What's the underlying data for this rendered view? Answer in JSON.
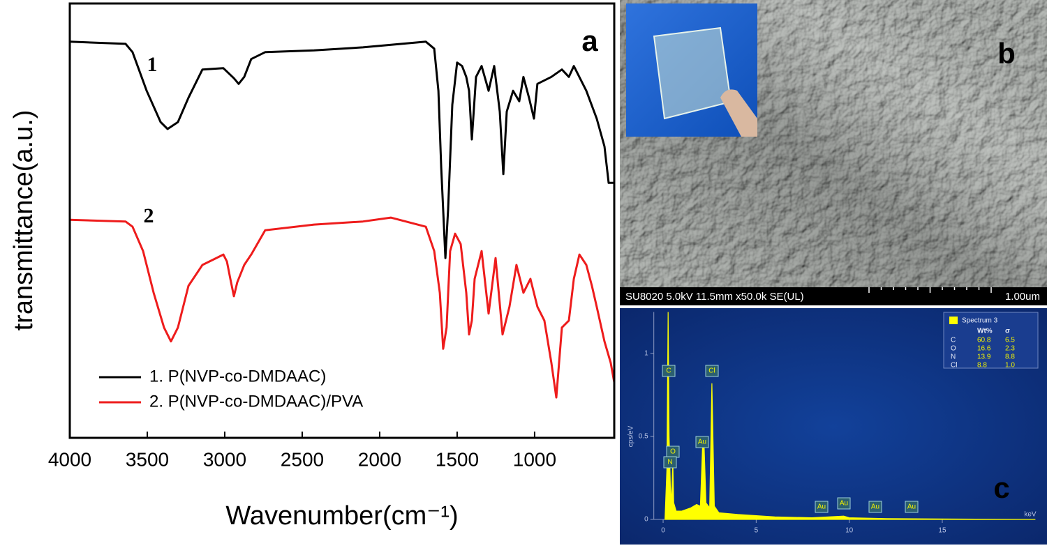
{
  "chart_data": [
    {
      "type": "line",
      "ylabel": "transmittance(a.u.)",
      "xlabel": "Wavenumber(cm⁻¹)",
      "xlim": [
        4000,
        486
      ],
      "ylim": [
        0,
        100
      ],
      "xticks": [
        4000,
        3500,
        3000,
        2500,
        2000,
        1500,
        1000
      ],
      "curve_labels": [
        "1",
        "2"
      ],
      "panel_label": "a",
      "series": [
        {
          "name": "1. P(NVP-co-DMDAAC)",
          "color": "#000000",
          "x": [
            4000,
            3640,
            3595,
            3504,
            3414,
            3369,
            3302,
            3234,
            3144,
            3009,
            2941,
            2910,
            2874,
            2829,
            2739,
            2423,
            2108,
            1702,
            1648,
            1621,
            1603,
            1576,
            1558,
            1531,
            1500,
            1468,
            1441,
            1423,
            1405,
            1378,
            1342,
            1297,
            1261,
            1225,
            1202,
            1180,
            1139,
            1099,
            1072,
            1036,
            1004,
            982,
            892,
            824,
            779,
            747,
            702,
            666,
            599,
            549,
            522,
            486
          ],
          "values": [
            91.2,
            90.7,
            88.8,
            79.9,
            72.7,
            71.1,
            72.7,
            78.3,
            84.8,
            85.1,
            82.8,
            81.5,
            83.1,
            87.2,
            88.8,
            89.2,
            89.9,
            91.2,
            89.6,
            79.9,
            62.3,
            41.4,
            52.6,
            76.7,
            86.4,
            85.6,
            83.1,
            79.9,
            68.7,
            83.1,
            85.6,
            79.9,
            85.6,
            75.1,
            60.7,
            75.1,
            79.9,
            77.5,
            83.1,
            78.3,
            73.5,
            81.5,
            83.1,
            84.8,
            83.1,
            85.6,
            82.4,
            79.9,
            73.5,
            67.1,
            58.7,
            58.7
          ]
        },
        {
          "name": "2. P(NVP-co-DMDAAC)/PVA",
          "color": "#ee1c1c",
          "x": [
            4000,
            3640,
            3595,
            3527,
            3459,
            3392,
            3347,
            3302,
            3234,
            3144,
            3054,
            3009,
            2986,
            2964,
            2941,
            2919,
            2874,
            2829,
            2739,
            2423,
            2108,
            1928,
            1702,
            1648,
            1612,
            1590,
            1568,
            1545,
            1513,
            1477,
            1441,
            1423,
            1405,
            1387,
            1342,
            1297,
            1252,
            1207,
            1162,
            1117,
            1072,
            1027,
            982,
            937,
            892,
            860,
            824,
            779,
            747,
            711,
            666,
            630,
            599,
            549,
            509,
            486
          ],
          "values": [
            50.2,
            49.8,
            48.6,
            43.0,
            33.4,
            25.4,
            22.2,
            25.4,
            35.0,
            39.8,
            41.4,
            42.2,
            40.6,
            36.6,
            32.6,
            35.8,
            39.8,
            42.2,
            47.8,
            49.1,
            49.8,
            50.7,
            48.6,
            43.0,
            33.4,
            20.5,
            25.4,
            43.0,
            47.0,
            44.6,
            33.4,
            23.8,
            27.0,
            36.6,
            43.0,
            28.6,
            41.4,
            23.8,
            30.2,
            39.8,
            33.4,
            36.6,
            30.2,
            27.0,
            17.3,
            9.3,
            25.4,
            27.0,
            36.6,
            42.2,
            39.8,
            35.0,
            30.2,
            22.2,
            17.3,
            12.8
          ]
        }
      ]
    },
    {
      "type": "area",
      "ylabel": "cps/eV",
      "xlabel": "keV",
      "xlim": [
        -0.5,
        20
      ],
      "ylim": [
        0,
        1.25
      ],
      "xticks": [
        0,
        5,
        10,
        15
      ],
      "yticks": [
        0,
        0.5,
        1
      ],
      "panel_label": "c",
      "peak_labels": [
        "C",
        "O",
        "N",
        "Cl",
        "Au",
        "Au",
        "Au",
        "Au",
        "Au"
      ],
      "series": [
        {
          "name": "Spectrum 3",
          "color": "#ffff00",
          "x": [
            0.1,
            0.2,
            0.27,
            0.32,
            0.39,
            0.45,
            0.52,
            0.57,
            0.7,
            1.0,
            1.5,
            1.8,
            2.0,
            2.12,
            2.2,
            2.3,
            2.5,
            2.62,
            2.75,
            3.0,
            4,
            6,
            8,
            9.7,
            10,
            12,
            15,
            20
          ],
          "values": [
            0,
            0.3,
            1.25,
            0.5,
            0.2,
            0.1,
            0.35,
            0.1,
            0.05,
            0.05,
            0.07,
            0.09,
            0.08,
            0.45,
            0.45,
            0.1,
            0.07,
            0.82,
            0.08,
            0.04,
            0.03,
            0.015,
            0.01,
            0.02,
            0.01,
            0.005,
            0.003,
            0
          ]
        }
      ],
      "table": {
        "header": [
          "Wt%",
          "σ"
        ],
        "rows": [
          [
            "C",
            60.8,
            6.5
          ],
          [
            "O",
            16.6,
            2.3
          ],
          [
            "N",
            13.9,
            8.8
          ],
          [
            "Cl",
            8.8,
            {
              "value": 1,
              "label": "1.0"
            }
          ]
        ]
      }
    }
  ],
  "sem_image": {
    "panel_label": "b",
    "info": "SU8020 5.0kV 11.5mm x50.0k SE(UL)",
    "scale": "1.00um"
  }
}
